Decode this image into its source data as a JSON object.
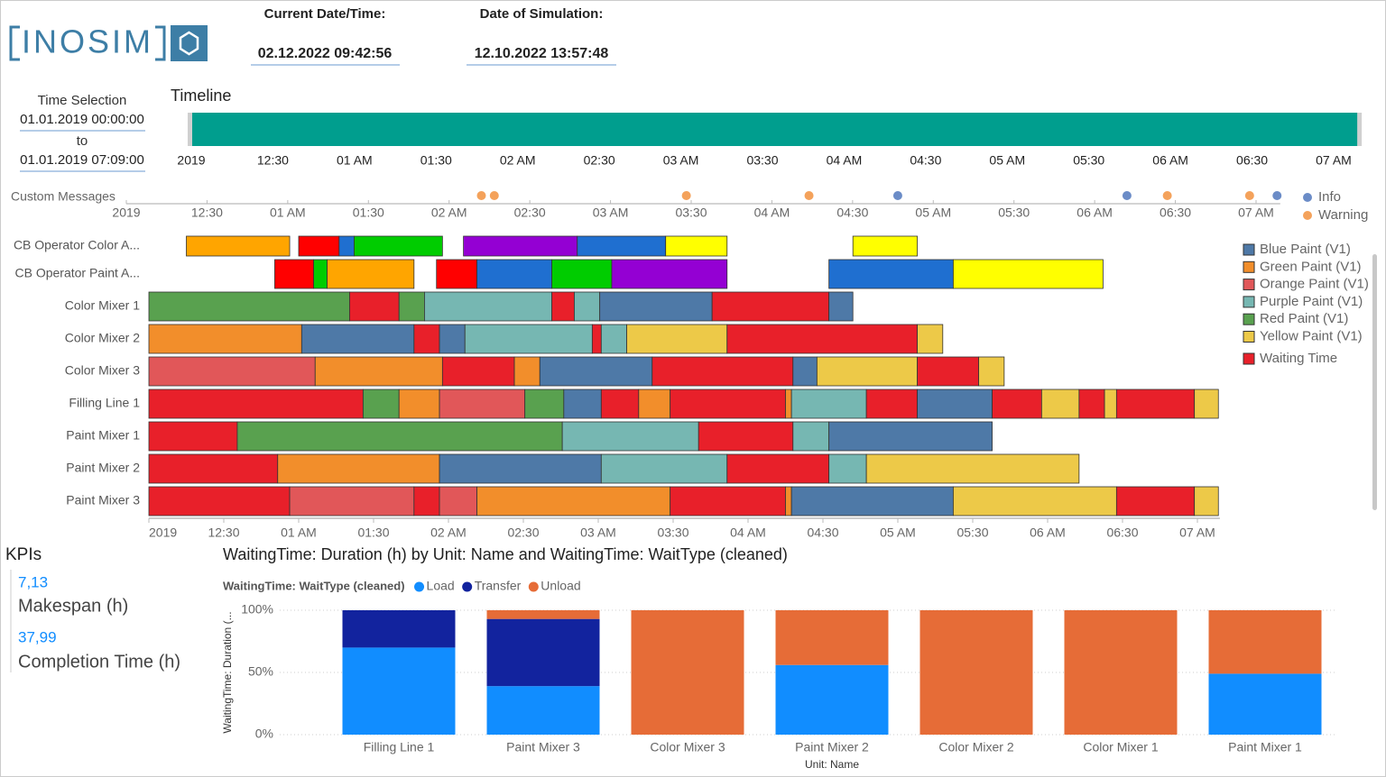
{
  "header": {
    "logo": "INOSIM",
    "current_label": "Current Date/Time:",
    "current_value": "02.12.2022 09:42:56",
    "sim_label": "Date of Simulation:",
    "sim_value": "12.10.2022 13:57:48"
  },
  "time_selection": {
    "title": "Time Selection",
    "from": "01.01.2019 00:00:00",
    "to_label": "to",
    "to": "01.01.2019 07:09:00"
  },
  "kpis": {
    "title": "KPIs",
    "items": [
      {
        "value": "7,13",
        "label": "Makespan (h)"
      },
      {
        "value": "37,99",
        "label": "Completion Time (h)"
      }
    ]
  },
  "chart_data": [
    {
      "type": "timeline",
      "title": "Timeline",
      "color": "#009e8e",
      "range": [
        0,
        7.15
      ],
      "xlim": [
        0,
        7.15
      ],
      "xticks": [
        {
          "value": 0,
          "label": "2019"
        },
        {
          "value": 0.5,
          "label": "12:30"
        },
        {
          "value": 1,
          "label": "01 AM"
        },
        {
          "value": 1.5,
          "label": "01:30"
        },
        {
          "value": 2,
          "label": "02 AM"
        },
        {
          "value": 2.5,
          "label": "02:30"
        },
        {
          "value": 3,
          "label": "03 AM"
        },
        {
          "value": 3.5,
          "label": "03:30"
        },
        {
          "value": 4,
          "label": "04 AM"
        },
        {
          "value": 4.5,
          "label": "04:30"
        },
        {
          "value": 5,
          "label": "05 AM"
        },
        {
          "value": 5.5,
          "label": "05:30"
        },
        {
          "value": 6,
          "label": "06 AM"
        },
        {
          "value": 6.5,
          "label": "06:30"
        },
        {
          "value": 7,
          "label": "07 AM"
        }
      ]
    },
    {
      "type": "scatter",
      "title": "Custom Messages",
      "xlim": [
        0,
        7.15
      ],
      "xticks": [
        {
          "value": 0,
          "label": "2019"
        },
        {
          "value": 0.5,
          "label": "12:30"
        },
        {
          "value": 1,
          "label": "01 AM"
        },
        {
          "value": 1.5,
          "label": "01:30"
        },
        {
          "value": 2,
          "label": "02 AM"
        },
        {
          "value": 2.5,
          "label": "02:30"
        },
        {
          "value": 3,
          "label": "03 AM"
        },
        {
          "value": 3.5,
          "label": "03:30"
        },
        {
          "value": 4,
          "label": "04 AM"
        },
        {
          "value": 4.5,
          "label": "04:30"
        },
        {
          "value": 5,
          "label": "05 AM"
        },
        {
          "value": 5.5,
          "label": "05:30"
        },
        {
          "value": 6,
          "label": "06 AM"
        },
        {
          "value": 6.5,
          "label": "06:30"
        },
        {
          "value": 7,
          "label": "07 AM"
        }
      ],
      "series": [
        {
          "name": "Info",
          "color": "#6b8cc7",
          "x": [
            4.78,
            6.2,
            7.13
          ]
        },
        {
          "name": "Warning",
          "color": "#f4a25b",
          "x": [
            2.2,
            2.28,
            3.47,
            4.23,
            6.45,
            6.96
          ]
        }
      ]
    },
    {
      "type": "gantt",
      "xlim": [
        0,
        7.15
      ],
      "xticks": [
        {
          "value": 0,
          "label": "2019"
        },
        {
          "value": 0.5,
          "label": "12:30"
        },
        {
          "value": 1,
          "label": "01 AM"
        },
        {
          "value": 1.5,
          "label": "01:30"
        },
        {
          "value": 2,
          "label": "02 AM"
        },
        {
          "value": 2.5,
          "label": "02:30"
        },
        {
          "value": 3,
          "label": "03 AM"
        },
        {
          "value": 3.5,
          "label": "03:30"
        },
        {
          "value": 4,
          "label": "04 AM"
        },
        {
          "value": 4.5,
          "label": "04:30"
        },
        {
          "value": 5,
          "label": "05 AM"
        },
        {
          "value": 5.5,
          "label": "05:30"
        },
        {
          "value": 6,
          "label": "06 AM"
        },
        {
          "value": 6.5,
          "label": "06:30"
        },
        {
          "value": 7,
          "label": "07 AM"
        }
      ],
      "series": [
        {
          "name": "Blue Paint (V1)",
          "color": "#4e79a7"
        },
        {
          "name": "Green Paint (V1)",
          "color": "#f28e2b"
        },
        {
          "name": "Orange Paint (V1)",
          "color": "#e15759"
        },
        {
          "name": "Purple Paint (V1)",
          "color": "#76b7b2"
        },
        {
          "name": "Red Paint (V1)",
          "color": "#59a14f"
        },
        {
          "name": "Yellow Paint (V1)",
          "color": "#edc948"
        },
        {
          "name": "Waiting Time",
          "color": "#e8202a"
        }
      ],
      "rows": [
        {
          "name": "CB Operator Color A...",
          "segments": [
            [
              0.25,
              0.94,
              "#ffa500"
            ],
            [
              1.0,
              1.27,
              "#ff0000"
            ],
            [
              1.27,
              1.37,
              "#1f6fd0"
            ],
            [
              1.37,
              1.96,
              "#00cc00"
            ],
            [
              2.1,
              2.86,
              "#9400d3"
            ],
            [
              2.86,
              3.45,
              "#1f6fd0"
            ],
            [
              3.45,
              3.86,
              "#ffff00"
            ],
            [
              4.7,
              5.13,
              "#ffff00"
            ]
          ]
        },
        {
          "name": "CB Operator Paint A...",
          "segments": [
            [
              0.84,
              1.1,
              "#ff0000"
            ],
            [
              1.1,
              1.19,
              "#00cc00"
            ],
            [
              1.19,
              1.77,
              "#ffa500"
            ],
            [
              1.92,
              2.19,
              "#ff0000"
            ],
            [
              2.19,
              2.69,
              "#1f6fd0"
            ],
            [
              2.69,
              3.09,
              "#00cc00"
            ],
            [
              3.09,
              3.86,
              "#9400d3"
            ],
            [
              4.54,
              5.37,
              "#1f6fd0"
            ],
            [
              5.37,
              6.37,
              "#ffff00"
            ]
          ]
        },
        {
          "name": "Color Mixer 1",
          "segments": [
            [
              0,
              1.34,
              "#59a14f"
            ],
            [
              1.34,
              1.67,
              "#e8202a"
            ],
            [
              1.67,
              1.84,
              "#59a14f"
            ],
            [
              1.84,
              2.69,
              "#76b7b2"
            ],
            [
              2.69,
              2.84,
              "#e8202a"
            ],
            [
              2.84,
              3.01,
              "#76b7b2"
            ],
            [
              3.01,
              3.76,
              "#4e79a7"
            ],
            [
              3.76,
              4.54,
              "#e8202a"
            ],
            [
              4.54,
              4.7,
              "#4e79a7"
            ]
          ]
        },
        {
          "name": "Color Mixer 2",
          "segments": [
            [
              0,
              1.02,
              "#f28e2b"
            ],
            [
              1.02,
              1.77,
              "#4e79a7"
            ],
            [
              1.77,
              1.94,
              "#e8202a"
            ],
            [
              1.94,
              2.11,
              "#4e79a7"
            ],
            [
              2.11,
              2.96,
              "#76b7b2"
            ],
            [
              2.96,
              3.02,
              "#e8202a"
            ],
            [
              3.02,
              3.19,
              "#76b7b2"
            ],
            [
              3.19,
              3.86,
              "#edc948"
            ],
            [
              3.86,
              5.13,
              "#e8202a"
            ],
            [
              5.13,
              5.3,
              "#edc948"
            ]
          ]
        },
        {
          "name": "Color Mixer 3",
          "segments": [
            [
              0,
              1.11,
              "#e15759"
            ],
            [
              1.11,
              1.96,
              "#f28e2b"
            ],
            [
              1.96,
              2.44,
              "#e8202a"
            ],
            [
              2.44,
              2.61,
              "#f28e2b"
            ],
            [
              2.61,
              3.36,
              "#4e79a7"
            ],
            [
              3.36,
              4.3,
              "#e8202a"
            ],
            [
              4.3,
              4.46,
              "#4e79a7"
            ],
            [
              4.46,
              5.13,
              "#edc948"
            ],
            [
              5.13,
              5.54,
              "#e8202a"
            ],
            [
              5.54,
              5.71,
              "#edc948"
            ]
          ]
        },
        {
          "name": "Filling Line 1",
          "segments": [
            [
              0,
              1.43,
              "#e8202a"
            ],
            [
              1.43,
              1.67,
              "#59a14f"
            ],
            [
              1.67,
              1.94,
              "#f28e2b"
            ],
            [
              1.94,
              2.51,
              "#e15759"
            ],
            [
              2.51,
              2.77,
              "#59a14f"
            ],
            [
              2.77,
              3.02,
              "#4e79a7"
            ],
            [
              3.02,
              3.27,
              "#e8202a"
            ],
            [
              3.27,
              3.48,
              "#f28e2b"
            ],
            [
              3.48,
              4.25,
              "#e8202a"
            ],
            [
              4.25,
              4.29,
              "#f28e2b"
            ],
            [
              4.29,
              4.79,
              "#76b7b2"
            ],
            [
              4.79,
              5.13,
              "#e8202a"
            ],
            [
              5.13,
              5.63,
              "#4e79a7"
            ],
            [
              5.63,
              5.96,
              "#e8202a"
            ],
            [
              5.96,
              6.21,
              "#edc948"
            ],
            [
              6.21,
              6.38,
              "#e8202a"
            ],
            [
              6.38,
              6.46,
              "#edc948"
            ],
            [
              6.46,
              6.98,
              "#e8202a"
            ],
            [
              6.98,
              7.14,
              "#edc948"
            ]
          ]
        },
        {
          "name": "Paint Mixer 1",
          "segments": [
            [
              0,
              0.59,
              "#e8202a"
            ],
            [
              0.59,
              2.76,
              "#59a14f"
            ],
            [
              2.76,
              3.67,
              "#76b7b2"
            ],
            [
              3.67,
              4.3,
              "#e8202a"
            ],
            [
              4.3,
              4.54,
              "#76b7b2"
            ],
            [
              4.54,
              5.63,
              "#4e79a7"
            ]
          ]
        },
        {
          "name": "Paint Mixer 2",
          "segments": [
            [
              0,
              0.86,
              "#e8202a"
            ],
            [
              0.86,
              1.94,
              "#f28e2b"
            ],
            [
              1.94,
              3.02,
              "#4e79a7"
            ],
            [
              3.02,
              3.86,
              "#76b7b2"
            ],
            [
              3.86,
              4.54,
              "#e8202a"
            ],
            [
              4.54,
              4.79,
              "#76b7b2"
            ],
            [
              4.79,
              6.21,
              "#edc948"
            ]
          ]
        },
        {
          "name": "Paint Mixer 3",
          "segments": [
            [
              0,
              0.94,
              "#e8202a"
            ],
            [
              0.94,
              1.77,
              "#e15759"
            ],
            [
              1.77,
              1.94,
              "#e8202a"
            ],
            [
              1.94,
              2.19,
              "#e15759"
            ],
            [
              2.19,
              3.48,
              "#f28e2b"
            ],
            [
              3.48,
              4.25,
              "#e8202a"
            ],
            [
              4.25,
              4.29,
              "#f28e2b"
            ],
            [
              4.29,
              5.37,
              "#4e79a7"
            ],
            [
              5.37,
              6.46,
              "#edc948"
            ],
            [
              6.46,
              6.98,
              "#e8202a"
            ],
            [
              6.98,
              7.14,
              "#edc948"
            ]
          ]
        }
      ]
    },
    {
      "type": "stacked_bar",
      "title": "WaitingTime: Duration (h) by Unit: Name and WaitingTime: WaitType (cleaned)",
      "legend_title": "WaitingTime: WaitType (cleaned)",
      "y_label": "WaitingTime: Duration (...",
      "x_label": "Unit: Name",
      "categories": [
        "Filling Line 1",
        "Paint Mixer 3",
        "Color Mixer 3",
        "Paint Mixer 2",
        "Color Mixer 2",
        "Color Mixer 1",
        "Paint Mixer 1"
      ],
      "series": [
        {
          "name": "Load",
          "color": "#118dff",
          "values": [
            70,
            39,
            0,
            56,
            0,
            0,
            49
          ]
        },
        {
          "name": "Transfer",
          "color": "#12239e",
          "values": [
            30,
            54,
            0,
            0,
            0,
            0,
            0
          ]
        },
        {
          "name": "Unload",
          "color": "#e66c37",
          "values": [
            0,
            7,
            100,
            44,
            100,
            100,
            51
          ]
        }
      ],
      "ylim": [
        0,
        100
      ],
      "yticks": [
        {
          "value": 0,
          "label": "0%"
        },
        {
          "value": 50,
          "label": "50%"
        },
        {
          "value": 100,
          "label": "100%"
        }
      ],
      "grid": true
    }
  ]
}
